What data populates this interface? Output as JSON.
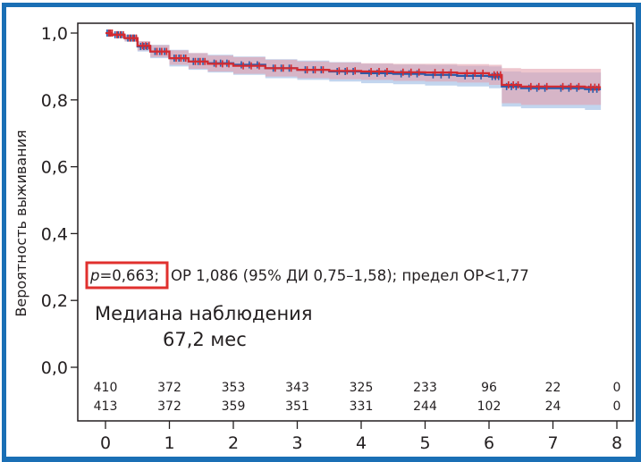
{
  "chart_data": {
    "type": "line",
    "subtype": "kaplan-meier",
    "title": "",
    "xlabel": "",
    "ylabel": "Вероятность выживания",
    "xlim": [
      0,
      8
    ],
    "ylim": [
      0,
      1
    ],
    "x_ticks": [
      "0",
      "1",
      "2",
      "3",
      "4",
      "5",
      "6",
      "7",
      "8"
    ],
    "y_ticks": [
      "0,0",
      "0,2",
      "0,4",
      "0,6",
      "0,8",
      "1,0"
    ],
    "y_tick_values": [
      0,
      0.2,
      0.4,
      0.6,
      0.8,
      1.0
    ],
    "grid": false,
    "series": [
      {
        "name": "group-blue",
        "color": "#2a5aa8",
        "band_color": "#8fb3e0",
        "x": [
          0,
          0.1,
          0.3,
          0.5,
          0.7,
          1.0,
          1.3,
          1.6,
          2.0,
          2.5,
          3.0,
          3.5,
          4.0,
          4.5,
          5.0,
          5.5,
          6.0,
          6.2,
          6.5,
          7.0,
          7.5,
          7.75
        ],
        "values": [
          1.0,
          0.995,
          0.985,
          0.96,
          0.945,
          0.925,
          0.915,
          0.91,
          0.905,
          0.895,
          0.89,
          0.885,
          0.88,
          0.878,
          0.875,
          0.872,
          0.87,
          0.84,
          0.835,
          0.835,
          0.832,
          0.832
        ],
        "ci_lower": [
          1.0,
          0.99,
          0.975,
          0.945,
          0.925,
          0.9,
          0.89,
          0.882,
          0.875,
          0.865,
          0.86,
          0.855,
          0.85,
          0.847,
          0.843,
          0.84,
          0.835,
          0.78,
          0.775,
          0.775,
          0.77,
          0.77
        ],
        "ci_upper": [
          1.0,
          1.0,
          0.995,
          0.975,
          0.965,
          0.95,
          0.94,
          0.935,
          0.93,
          0.922,
          0.918,
          0.913,
          0.908,
          0.906,
          0.905,
          0.902,
          0.9,
          0.885,
          0.882,
          0.882,
          0.882,
          0.882
        ]
      },
      {
        "name": "group-red",
        "color": "#d42a30",
        "band_color": "#e3a0ad",
        "x": [
          0,
          0.1,
          0.3,
          0.5,
          0.7,
          1.0,
          1.3,
          1.6,
          2.0,
          2.5,
          3.0,
          3.5,
          4.0,
          4.5,
          5.0,
          5.5,
          6.0,
          6.2,
          6.5,
          7.0,
          7.5,
          7.75
        ],
        "values": [
          1.0,
          0.995,
          0.985,
          0.962,
          0.945,
          0.925,
          0.915,
          0.908,
          0.902,
          0.895,
          0.89,
          0.887,
          0.885,
          0.883,
          0.882,
          0.88,
          0.875,
          0.845,
          0.84,
          0.84,
          0.838,
          0.838
        ],
        "ci_lower": [
          1.0,
          0.99,
          0.975,
          0.948,
          0.928,
          0.905,
          0.893,
          0.885,
          0.878,
          0.87,
          0.865,
          0.862,
          0.86,
          0.857,
          0.855,
          0.852,
          0.845,
          0.79,
          0.785,
          0.785,
          0.785,
          0.785
        ],
        "ci_upper": [
          1.0,
          1.0,
          0.995,
          0.976,
          0.964,
          0.948,
          0.94,
          0.933,
          0.928,
          0.92,
          0.915,
          0.912,
          0.91,
          0.908,
          0.908,
          0.907,
          0.905,
          0.895,
          0.893,
          0.893,
          0.893,
          0.893
        ]
      }
    ],
    "numbers_at_risk": {
      "times": [
        0,
        1,
        2,
        3,
        4,
        5,
        6,
        7,
        8
      ],
      "rows": [
        [
          "410",
          "372",
          "353",
          "343",
          "325",
          "233",
          "96",
          "22",
          "0"
        ],
        [
          "413",
          "372",
          "359",
          "351",
          "331",
          "244",
          "102",
          "24",
          "0"
        ]
      ]
    },
    "annotations": {
      "p_value_prefix": "p",
      "p_value_rest": "=0,663;",
      "stats": "ОР 1,086 (95% ДИ 0,75–1,58); предел ОР<1,77",
      "median_line1": "Медиана наблюдения",
      "median_line2": "67,2 мес"
    }
  },
  "colors": {
    "frame": "#1a6fb5",
    "axis": "#231f20",
    "highlight_box": "#e0302e"
  }
}
